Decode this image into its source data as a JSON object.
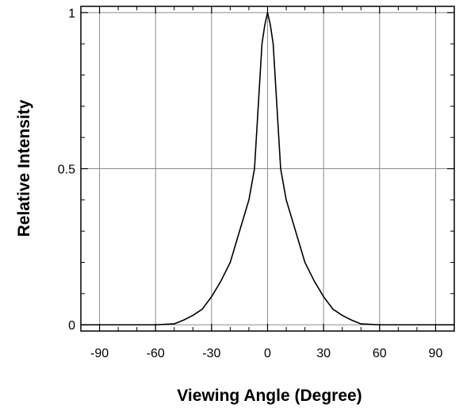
{
  "chart_data": {
    "type": "line",
    "title": "",
    "xlabel": "Viewing Angle (Degree)",
    "ylabel": "Relative Intensity",
    "xlim": [
      -100,
      100
    ],
    "ylim": [
      -0.02,
      1.02
    ],
    "grid": true,
    "xticks": [
      -90,
      -60,
      -30,
      0,
      30,
      60,
      90
    ],
    "yticks": [
      0,
      0.5,
      1
    ],
    "xtick_labels": [
      "-90",
      "-60",
      "-30",
      "0",
      "30",
      "60",
      "90"
    ],
    "ytick_labels": [
      "0",
      "0.5",
      "1"
    ],
    "series": [
      {
        "color": "#000000",
        "x": [
          -100,
          -60,
          -50,
          -45,
          -40,
          -35,
          -30,
          -25,
          -20,
          -15,
          -10,
          -7,
          -5,
          -3,
          -1.5,
          0,
          1.5,
          3,
          5,
          7,
          10,
          15,
          20,
          25,
          30,
          35,
          40,
          45,
          50,
          60,
          100
        ],
        "y": [
          0,
          0,
          0.003,
          0.015,
          0.03,
          0.05,
          0.09,
          0.14,
          0.2,
          0.3,
          0.4,
          0.5,
          0.7,
          0.9,
          0.96,
          1.0,
          0.96,
          0.9,
          0.7,
          0.5,
          0.4,
          0.3,
          0.2,
          0.14,
          0.09,
          0.05,
          0.03,
          0.015,
          0.003,
          0,
          0
        ]
      }
    ]
  }
}
